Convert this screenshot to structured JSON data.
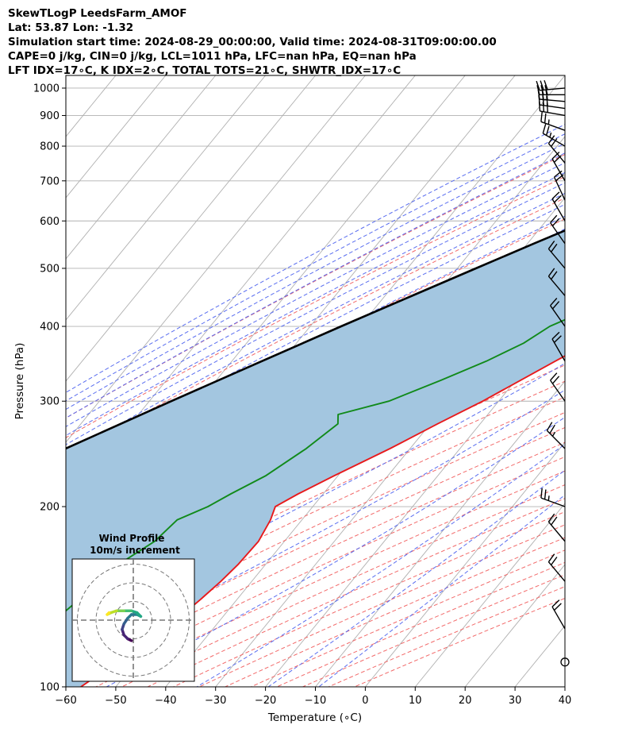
{
  "header": {
    "line1": "SkewTLogP LeedsFarm_AMOF",
    "line2": "Lat: 53.87   Lon: -1.32",
    "line3": "Simulation start time: 2024-08-29_00:00:00, Valid time: 2024-08-31T09:00:00.00",
    "line4": "CAPE=0 j/kg, CIN=0 j/kg, LCL=1011 hPa, LFC=nan hPa, EQ=nan hPa",
    "line5": "LFT IDX=17∘C, K IDX=2∘C, TOTAL TOTS=21∘C, SHWTR_IDX=17∘C"
  },
  "chart_data": {
    "type": "line",
    "subtype": "skew-T log-P",
    "xlabel": "Temperature (∘C)",
    "ylabel": "Pressure (hPa)",
    "xlim": [
      -60,
      40
    ],
    "ylim": [
      1050,
      100
    ],
    "x_ticks": [
      "−60",
      "−50",
      "−40",
      "−30",
      "−20",
      "−10",
      "0",
      "10",
      "20",
      "30",
      "40"
    ],
    "x_tick_values": [
      -60,
      -50,
      -40,
      -30,
      -20,
      -10,
      0,
      10,
      20,
      30,
      40
    ],
    "y_ticks": [
      "100",
      "200",
      "300",
      "400",
      "500",
      "600",
      "700",
      "800",
      "900",
      "1000"
    ],
    "y_tick_values": [
      100,
      200,
      300,
      400,
      500,
      600,
      700,
      800,
      900,
      1000
    ],
    "grid": true,
    "y_scale": "log",
    "colors": {
      "temperature": "#e8191b",
      "dewpoint": "#118a1a",
      "parcel": "#000000",
      "cape_fill": "#a3c6e0",
      "dry_adiabats": "#f26a6a",
      "moist_adiabats": "#5a6ef0",
      "mixing_ratio": "#8a3fc7",
      "isotherms": "#b0b0b0"
    },
    "series": [
      {
        "key": "temperature",
        "points": [
          [
            1000,
            11.7
          ],
          [
            990,
            12.0
          ],
          [
            975,
            12.8
          ],
          [
            950,
            13.0
          ],
          [
            925,
            13.2
          ],
          [
            900,
            13.6
          ],
          [
            875,
            13.9
          ],
          [
            850,
            14.2
          ],
          [
            825,
            14.8
          ],
          [
            800,
            15.6
          ],
          [
            775,
            16.1
          ],
          [
            750,
            16.4
          ],
          [
            725,
            15.6
          ],
          [
            700,
            14.0
          ],
          [
            650,
            11.0
          ],
          [
            600,
            7.8
          ],
          [
            550,
            4.2
          ],
          [
            500,
            0.8
          ],
          [
            450,
            -3.2
          ],
          [
            400,
            -8.0
          ],
          [
            350,
            -15.2
          ],
          [
            300,
            -23.2
          ],
          [
            275,
            -28.5
          ],
          [
            250,
            -34.0
          ],
          [
            225,
            -40.8
          ],
          [
            210,
            -45.0
          ],
          [
            200,
            -47.5
          ],
          [
            190,
            -46.3
          ],
          [
            175,
            -45.2
          ],
          [
            160,
            -45.5
          ],
          [
            150,
            -46.2
          ],
          [
            140,
            -47.3
          ],
          [
            130,
            -48.7
          ],
          [
            120,
            -51.0
          ],
          [
            110,
            -53.8
          ],
          [
            100,
            -57.0
          ]
        ]
      },
      {
        "key": "dewpoint",
        "points": [
          [
            1000,
            10.3
          ],
          [
            990,
            9.0
          ],
          [
            975,
            4.5
          ],
          [
            960,
            1.0
          ],
          [
            950,
            -2.0
          ],
          [
            925,
            -6.5
          ],
          [
            900,
            -9.5
          ],
          [
            875,
            -11.0
          ],
          [
            850,
            -13.0
          ],
          [
            825,
            -15.5
          ],
          [
            800,
            -18.0
          ],
          [
            775,
            -21.5
          ],
          [
            750,
            -12.0
          ],
          [
            725,
            -3.5
          ],
          [
            700,
            1.5
          ],
          [
            675,
            4.5
          ],
          [
            650,
            6.5
          ],
          [
            625,
            5.5
          ],
          [
            600,
            2.5
          ],
          [
            550,
            -1.0
          ],
          [
            500,
            -5.0
          ],
          [
            450,
            -13.0
          ],
          [
            400,
            -22.0
          ],
          [
            375,
            -24.5
          ],
          [
            350,
            -29.0
          ],
          [
            325,
            -35.0
          ],
          [
            300,
            -42.0
          ],
          [
            285,
            -50.0
          ],
          [
            275,
            -48.5
          ],
          [
            250,
            -50.8
          ],
          [
            225,
            -54.5
          ],
          [
            210,
            -58.5
          ],
          [
            200,
            -61.0
          ],
          [
            190,
            -65.0
          ],
          [
            175,
            -66.0
          ],
          [
            160,
            -69.5
          ],
          [
            150,
            -71.5
          ],
          [
            140,
            -71.6
          ],
          [
            130,
            -73.0
          ],
          [
            120,
            -74.0
          ],
          [
            110,
            -75.5
          ],
          [
            100,
            -77.0
          ]
        ]
      },
      {
        "key": "parcel",
        "points": [
          [
            1011,
            11.4
          ],
          [
            1000,
            10.5
          ],
          [
            950,
            6.1
          ],
          [
            900,
            1.6
          ],
          [
            850,
            -3.1
          ],
          [
            800,
            -8.1
          ],
          [
            750,
            -13.4
          ],
          [
            700,
            -19.0
          ],
          [
            650,
            -25.1
          ],
          [
            600,
            -31.6
          ],
          [
            550,
            -38.7
          ],
          [
            500,
            -46.3
          ],
          [
            450,
            -54.6
          ],
          [
            400,
            -63.8
          ],
          [
            350,
            -74.0
          ],
          [
            300,
            -85.6
          ],
          [
            250,
            -99.0
          ],
          [
            200,
            -115.0
          ],
          [
            150,
            -134.9
          ],
          [
            100,
            -162.0
          ]
        ]
      }
    ],
    "wind_barbs": [
      {
        "p": 1000,
        "speed_kt": 30,
        "dir": 265
      },
      {
        "p": 975,
        "speed_kt": 30,
        "dir": 270
      },
      {
        "p": 950,
        "speed_kt": 30,
        "dir": 275
      },
      {
        "p": 925,
        "speed_kt": 30,
        "dir": 278
      },
      {
        "p": 900,
        "speed_kt": 30,
        "dir": 280
      },
      {
        "p": 850,
        "speed_kt": 25,
        "dir": 290
      },
      {
        "p": 800,
        "speed_kt": 25,
        "dir": 300
      },
      {
        "p": 750,
        "speed_kt": 20,
        "dir": 320
      },
      {
        "p": 700,
        "speed_kt": 20,
        "dir": 330
      },
      {
        "p": 650,
        "speed_kt": 20,
        "dir": 335
      },
      {
        "p": 600,
        "speed_kt": 20,
        "dir": 330
      },
      {
        "p": 550,
        "speed_kt": 20,
        "dir": 325
      },
      {
        "p": 500,
        "speed_kt": 20,
        "dir": 320
      },
      {
        "p": 450,
        "speed_kt": 20,
        "dir": 320
      },
      {
        "p": 400,
        "speed_kt": 20,
        "dir": 325
      },
      {
        "p": 350,
        "speed_kt": 20,
        "dir": 330
      },
      {
        "p": 300,
        "speed_kt": 20,
        "dir": 325
      },
      {
        "p": 250,
        "speed_kt": 25,
        "dir": 315
      },
      {
        "p": 200,
        "speed_kt": 25,
        "dir": 290
      },
      {
        "p": 175,
        "speed_kt": 20,
        "dir": 320
      },
      {
        "p": 150,
        "speed_kt": 20,
        "dir": 320
      },
      {
        "p": 125,
        "speed_kt": 20,
        "dir": 330
      },
      {
        "p": 110,
        "speed_kt": 0,
        "dir": 0
      }
    ],
    "hodograph": {
      "title": "Wind Profile",
      "subtitle": "10m/s increment",
      "ring_step_ms": 10,
      "rings": 3,
      "points_uv": [
        [
          -1,
          -11
        ],
        [
          -3,
          -10
        ],
        [
          -5,
          -8
        ],
        [
          -6,
          -5
        ],
        [
          -5,
          -2
        ],
        [
          -3,
          1
        ],
        [
          -1,
          3
        ],
        [
          2,
          3
        ],
        [
          4,
          2
        ],
        [
          2,
          4
        ],
        [
          -1,
          5
        ],
        [
          -5,
          5
        ],
        [
          -9,
          5
        ],
        [
          -12,
          4
        ],
        [
          -14,
          3
        ],
        [
          -13,
          4
        ]
      ]
    }
  }
}
